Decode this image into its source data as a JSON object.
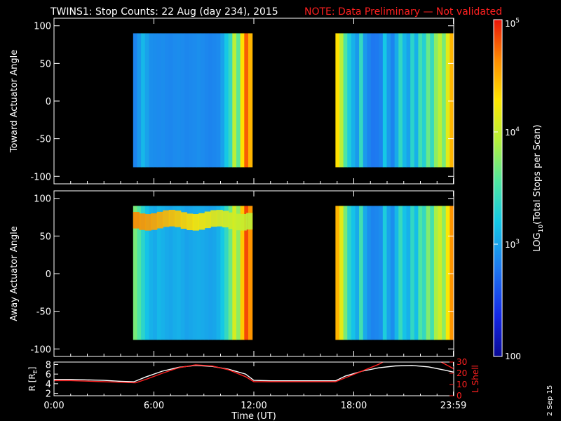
{
  "title": {
    "main": "TWINS1: Stop Counts: 22 Aug (day 234), 2015",
    "note": "NOTE: Data Preliminary — Not validated"
  },
  "stamp": "2 Sep 15",
  "colors": {
    "background": "#000000",
    "text": "#ffffff",
    "note": "#ff2020",
    "lshell": "#ff2020",
    "radius": "#ffffff"
  },
  "colorbar": {
    "label_prefix": "LOG",
    "label_sub": "10",
    "label_rest": "(Total Stops per Scan)",
    "scale": "log",
    "range": [
      100,
      100000
    ],
    "ticks": [
      {
        "value": 100,
        "base": "100",
        "exp": ""
      },
      {
        "value": 1000,
        "base": "10",
        "exp": "3"
      },
      {
        "value": 10000,
        "base": "10",
        "exp": "4"
      },
      {
        "value": 100000,
        "base": "10",
        "exp": "5"
      }
    ]
  },
  "chart_data": [
    {
      "type": "heatmap",
      "ylabel": "Toward Actuator Angle",
      "ylim": [
        -110,
        110
      ],
      "yticks": [
        -100,
        -50,
        0,
        50,
        100
      ],
      "xlim": [
        0,
        24
      ],
      "segments": [
        {
          "x": [
            4.75,
            11.9
          ],
          "y": [
            -88,
            90
          ],
          "levels": [
            700,
            900,
            1300,
            1000,
            800,
            780,
            760,
            780,
            740,
            720,
            760,
            780,
            760,
            720,
            740,
            760,
            800,
            760,
            720,
            700,
            720,
            760,
            1000,
            1600,
            2500,
            9000,
            4000,
            20000,
            60000,
            30000
          ]
        },
        {
          "x": [
            16.9,
            24.0
          ],
          "y": [
            -88,
            90
          ],
          "levels": [
            20000,
            9000,
            3500,
            1800,
            1200,
            900,
            2500,
            900,
            700,
            600,
            620,
            700,
            1600,
            900,
            700,
            1100,
            2400,
            1300,
            1000,
            2200,
            1200,
            3000,
            2000,
            4500,
            2500,
            6000,
            9000,
            5000,
            14000,
            30000
          ]
        }
      ]
    },
    {
      "type": "heatmap",
      "ylabel": "Away Actuator Angle",
      "ylim": [
        -110,
        110
      ],
      "yticks": [
        -100,
        -50,
        0,
        50,
        100
      ],
      "xlim": [
        0,
        24
      ],
      "segments": [
        {
          "x": [
            4.75,
            11.9
          ],
          "y": [
            -88,
            90
          ],
          "levels": [
            5000,
            3500,
            2200,
            1500,
            1200,
            1100,
            1300,
            1200,
            1100,
            1050,
            1150,
            1200,
            1100,
            1000,
            1050,
            1100,
            1150,
            1100,
            1050,
            1000,
            1050,
            1200,
            1600,
            2500,
            4500,
            12000,
            6000,
            25000,
            70000,
            40000
          ],
          "band": {
            "y": [
              60,
              82
            ],
            "levels_start": 45000,
            "levels_end": 9000
          }
        },
        {
          "x": [
            16.9,
            24.0
          ],
          "y": [
            -88,
            90
          ],
          "levels": [
            30000,
            14000,
            5000,
            2200,
            1500,
            1100,
            3000,
            1100,
            800,
            700,
            720,
            800,
            1800,
            1000,
            800,
            1300,
            2600,
            1500,
            1200,
            2400,
            1400,
            3500,
            2500,
            5500,
            3000,
            7500,
            11000,
            6000,
            18000,
            40000
          ]
        }
      ]
    },
    {
      "type": "line",
      "xlabel": "Time (UT)",
      "ylabel_left": "R [R",
      "ylabel_left_sub": "E",
      "ylabel_left_end": "]",
      "ylabel_right": "L Shell",
      "xlim": [
        0,
        24
      ],
      "xticks": [
        {
          "value": 0,
          "label": "0:00"
        },
        {
          "value": 6,
          "label": "6:00"
        },
        {
          "value": 12,
          "label": "12:00"
        },
        {
          "value": 18,
          "label": "18:00"
        },
        {
          "value": 23.98,
          "label": "23:59"
        }
      ],
      "y_left": {
        "ylim": [
          1.5,
          8.5
        ],
        "ticks": [
          2,
          4,
          6,
          8
        ]
      },
      "y_right": {
        "ylim": [
          0,
          30
        ],
        "ticks": [
          0,
          10,
          20,
          30
        ]
      },
      "series": [
        {
          "axis": "left",
          "color": "#ffffff",
          "x": [
            0,
            1,
            2,
            3,
            4,
            4.8,
            5.5,
            6.5,
            7.5,
            8.5,
            9.5,
            10.5,
            11.5,
            12.0,
            13,
            14,
            15,
            16,
            16.9,
            17.5,
            18.5,
            19.5,
            20.5,
            21.5,
            22.5,
            23.5,
            24.0
          ],
          "y": [
            4.9,
            4.9,
            4.8,
            4.7,
            4.5,
            4.4,
            5.4,
            6.6,
            7.4,
            7.8,
            7.6,
            7.0,
            6.0,
            4.7,
            4.6,
            4.6,
            4.6,
            4.6,
            4.6,
            5.6,
            6.6,
            7.3,
            7.7,
            7.8,
            7.5,
            6.8,
            6.4
          ]
        },
        {
          "axis": "right",
          "color": "#ff2020",
          "x": [
            0,
            1,
            2,
            3,
            4,
            4.9,
            5.6,
            6.5,
            7.5,
            8.5,
            9.5,
            10.5,
            11.5,
            12.0,
            13,
            14,
            15,
            16,
            16.9,
            17.5,
            18.5,
            19.5,
            20.0,
            23.0,
            24.0
          ],
          "y": [
            13.5,
            13.5,
            13,
            12.5,
            12,
            11.5,
            15,
            20,
            25,
            27.5,
            26.5,
            23,
            17,
            12.5,
            12.5,
            12.5,
            12.5,
            12.5,
            12.5,
            16,
            22,
            28,
            32,
            32,
            24
          ]
        }
      ]
    }
  ]
}
